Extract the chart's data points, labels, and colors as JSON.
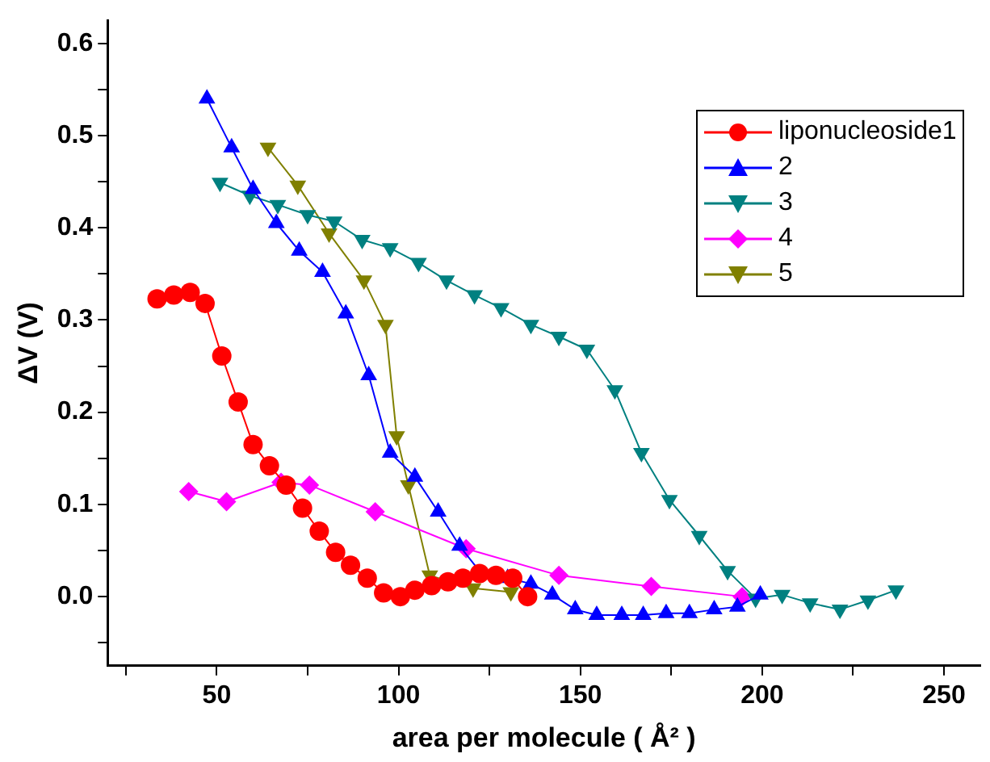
{
  "chart_data": {
    "type": "line",
    "xlabel": "area per molecule ( Å² )",
    "ylabel": "ΔV (V)",
    "xlim": [
      20,
      260
    ],
    "ylim": [
      -0.075,
      0.625
    ],
    "xticks": [
      {
        "value": 25,
        "label": null
      },
      50,
      {
        "value": 75,
        "label": null
      },
      100,
      {
        "value": 125,
        "label": null
      },
      150,
      {
        "value": 175,
        "label": null
      },
      200,
      {
        "value": 225,
        "label": null
      },
      250
    ],
    "yticks": [
      {
        "value": -0.05,
        "label": null
      },
      {
        "value": 0,
        "label": "0.0"
      },
      {
        "value": 0.05,
        "label": null
      },
      0.1,
      {
        "value": 0.15,
        "label": null
      },
      0.2,
      {
        "value": 0.25,
        "label": null
      },
      0.3,
      {
        "value": 0.35,
        "label": null
      },
      0.4,
      {
        "value": 0.45,
        "label": null
      },
      0.5,
      {
        "value": 0.55,
        "label": null
      },
      0.6
    ],
    "grid": false,
    "legend": "top right",
    "series": [
      {
        "name": "liponucleoside1",
        "color": "#ff0000",
        "marker": "circle",
        "x": [
          33.6,
          38.2,
          42.7,
          46.8,
          51.4,
          55.9,
          60,
          64.5,
          69.1,
          73.6,
          78.2,
          82.7,
          86.8,
          91.4,
          95.9,
          100.5,
          104.5,
          109.1,
          113.6,
          117.7,
          122.3,
          126.8,
          131.4,
          135.5
        ],
        "values": [
          0.323,
          0.327,
          0.33,
          0.318,
          0.261,
          0.211,
          0.165,
          0.142,
          0.121,
          0.096,
          0.071,
          0.048,
          0.034,
          0.02,
          0.004,
          0.0,
          0.007,
          0.012,
          0.016,
          0.02,
          0.025,
          0.023,
          0.02,
          0.0
        ]
      },
      {
        "name": "2",
        "color": "#0000ff",
        "marker": "triangle",
        "x": [
          47.3,
          54.1,
          60,
          66.4,
          72.7,
          79.1,
          85.5,
          91.8,
          97.7,
          104.5,
          110.9,
          116.8,
          123,
          130,
          136.4,
          142.3,
          148.6,
          154.5,
          161.4,
          167.3,
          173.6,
          180,
          186.8,
          193.2,
          199.5
        ],
        "values": [
          0.54,
          0.487,
          0.442,
          0.405,
          0.375,
          0.352,
          0.307,
          0.24,
          0.156,
          0.13,
          0.092,
          0.055,
          0.024,
          0.02,
          0.014,
          0.002,
          -0.014,
          -0.02,
          -0.02,
          -0.02,
          -0.018,
          -0.018,
          -0.014,
          -0.011,
          0.002
        ]
      },
      {
        "name": "3",
        "color": "#008080",
        "marker": "triangle-down",
        "x": [
          50.9,
          59.1,
          66.8,
          75,
          82.3,
          90,
          97.7,
          105.5,
          113.2,
          120.9,
          128.2,
          136.4,
          144.1,
          151.8,
          159.5,
          166.8,
          174.5,
          182.7,
          190.5,
          198.2,
          205.5,
          213.2,
          221.4,
          229.1,
          236.8
        ],
        "values": [
          0.449,
          0.435,
          0.425,
          0.414,
          0.407,
          0.387,
          0.378,
          0.362,
          0.343,
          0.327,
          0.313,
          0.295,
          0.282,
          0.268,
          0.224,
          0.156,
          0.105,
          0.066,
          0.028,
          -0.002,
          0.002,
          -0.007,
          -0.014,
          -0.004,
          0.007
        ]
      },
      {
        "name": "4",
        "color": "#ff00ff",
        "marker": "diamond",
        "x": [
          42.3,
          52.7,
          67.7,
          75.5,
          93.6,
          118.6,
          144.1,
          169.5,
          194.5
        ],
        "values": [
          0.114,
          0.103,
          0.124,
          0.121,
          0.092,
          0.052,
          0.023,
          0.011,
          0.0
        ]
      },
      {
        "name": "5",
        "color": "#808000",
        "marker": "triangle-down",
        "x": [
          64.1,
          72.3,
          80.9,
          90.5,
          96.4,
          99.5,
          102.7,
          108.6,
          120.5,
          130.9
        ],
        "values": [
          0.487,
          0.446,
          0.394,
          0.343,
          0.295,
          0.174,
          0.121,
          0.023,
          0.009,
          0.005
        ]
      }
    ]
  }
}
